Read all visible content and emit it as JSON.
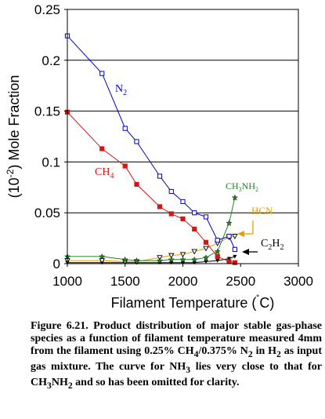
{
  "chart_data": {
    "type": "line",
    "xlabel": "Filament Temperature (˚C)",
    "ylabel": "(10⁻²) Mole Fraction",
    "xlim": [
      1000,
      3000
    ],
    "ylim": [
      0,
      0.25
    ],
    "xticks": [
      "1000",
      "1500",
      "2000",
      "2500",
      "3000"
    ],
    "yticks": [
      "0",
      "0.05",
      "0.1",
      "0.15",
      "0.2",
      "0.25"
    ],
    "grid": "horizontal",
    "series": [
      {
        "name": "N2",
        "color": "#0000c8",
        "marker": "open-square",
        "points": [
          [
            1000,
            0.224
          ],
          [
            1300,
            0.187
          ],
          [
            1500,
            0.133
          ],
          [
            1600,
            0.12
          ],
          [
            1800,
            0.086
          ],
          [
            1900,
            0.071
          ],
          [
            2000,
            0.061
          ],
          [
            2100,
            0.05
          ],
          [
            2200,
            0.046
          ],
          [
            2300,
            0.023
          ],
          [
            2400,
            0.027
          ],
          [
            2450,
            0.014
          ]
        ]
      },
      {
        "name": "CH4",
        "color": "#d01818",
        "marker": "filled-square",
        "points": [
          [
            1000,
            0.149
          ],
          [
            1300,
            0.113
          ],
          [
            1500,
            0.096
          ],
          [
            1600,
            0.078
          ],
          [
            1800,
            0.056
          ],
          [
            1900,
            0.049
          ],
          [
            2000,
            0.044
          ],
          [
            2100,
            0.034
          ],
          [
            2200,
            0.021
          ],
          [
            2300,
            0.007
          ],
          [
            2400,
            0.002
          ],
          [
            2450,
            0.001
          ]
        ]
      },
      {
        "name": "CH3NH2",
        "color": "#1a8a1a",
        "marker": "star",
        "points": [
          [
            1000,
            0.007
          ],
          [
            1300,
            0.007
          ],
          [
            1500,
            0.004
          ],
          [
            1600,
            0.003
          ],
          [
            1800,
            0.003
          ],
          [
            1900,
            0.004
          ],
          [
            2000,
            0.004
          ],
          [
            2100,
            0.004
          ],
          [
            2200,
            0.006
          ],
          [
            2300,
            0.012
          ],
          [
            2400,
            0.04
          ],
          [
            2450,
            0.065
          ]
        ]
      },
      {
        "name": "HCN",
        "color": "#e8a000",
        "marker": "triangle-down",
        "points": [
          [
            1000,
            0.003
          ],
          [
            1300,
            0.003
          ],
          [
            1500,
            0.002
          ],
          [
            1600,
            0.002
          ],
          [
            1800,
            0.006
          ],
          [
            1900,
            0.008
          ],
          [
            2000,
            0.009
          ],
          [
            2100,
            0.012
          ],
          [
            2200,
            0.015
          ],
          [
            2300,
            0.02
          ],
          [
            2400,
            0.026
          ],
          [
            2450,
            0.027
          ]
        ]
      },
      {
        "name": "C2H2",
        "color": "#000000",
        "marker": "filled-triangle-down",
        "points": [
          [
            1000,
            0.001
          ],
          [
            1300,
            0.001
          ],
          [
            1500,
            0.001
          ],
          [
            1600,
            0.001
          ],
          [
            1800,
            0.001
          ],
          [
            1900,
            0.001
          ],
          [
            2000,
            0.001
          ],
          [
            2100,
            0.001
          ],
          [
            2200,
            0.002
          ],
          [
            2300,
            0.003
          ],
          [
            2400,
            0.005
          ],
          [
            2450,
            0.007
          ]
        ]
      }
    ]
  },
  "labels": {
    "n2": "N",
    "n2_sub": "2",
    "ch4": "CH",
    "ch4_sub": "4",
    "ch3nh2_a": "CH",
    "ch3nh2_sub1": "3",
    "ch3nh2_b": "NH",
    "ch3nh2_sub2": "2",
    "hcn": "HCN",
    "c2h2_a": "C",
    "c2h2_sub1": "2",
    "c2h2_b": "H",
    "c2h2_sub2": "2"
  },
  "axis_title": {
    "x_main": "Filament Temperature (",
    "x_degree": "˚",
    "x_unit": "C)",
    "y_main": "(10",
    "y_exp": "-2",
    "y_rest": ") Mole Fraction"
  },
  "caption": {
    "p1": "Figure 6.21. Product distribution of major stable gas-phase species as a function of filament temperature measured 4mm from the filament using 0.25% CH",
    "s1": "4",
    "p2": "/0.375% N",
    "s2": "2",
    "p3": " in H",
    "s3": "2",
    "p4": " as input gas mixture. The curve for NH",
    "s4": "3",
    "p5": " lies very close to that for CH",
    "s5": "3",
    "p6": "NH",
    "s6": "2",
    "p7": " and so has been omitted for clarity."
  }
}
